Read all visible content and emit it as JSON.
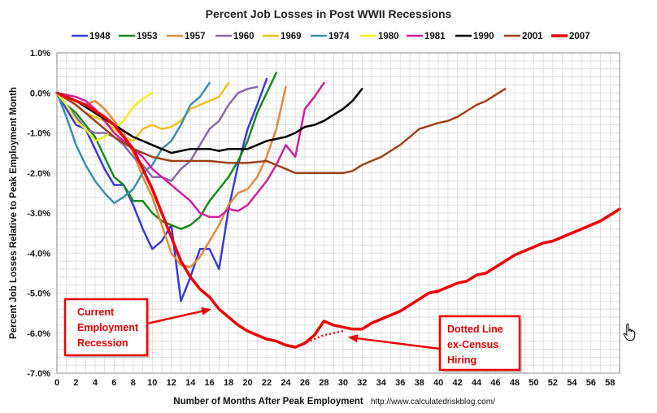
{
  "chart_data": {
    "type": "line",
    "title": "Percent Job Losses in Post WWII Recessions",
    "xlabel": "Number of Months After Peak Employment",
    "ylabel": "Percent Job Losses Relative to Peak Employment Month",
    "source": "http://www.calculatedriskblog.com/",
    "xlim": [
      0,
      59
    ],
    "ylim": [
      -7.0,
      1.0
    ],
    "x_ticks": [
      "0",
      "2",
      "4",
      "6",
      "8",
      "10",
      "12",
      "14",
      "16",
      "18",
      "20",
      "22",
      "24",
      "26",
      "28",
      "30",
      "32",
      "34",
      "36",
      "38",
      "40",
      "42",
      "44",
      "46",
      "48",
      "50",
      "52",
      "54",
      "56",
      "58"
    ],
    "y_ticks": [
      "1.0%",
      "0.0%",
      "-1.0%",
      "-2.0%",
      "-3.0%",
      "-4.0%",
      "-5.0%",
      "-6.0%",
      "-7.0%"
    ],
    "grid": true,
    "legend_position": "top",
    "series": [
      {
        "name": "1948",
        "color": "#3a3ae0",
        "width": 2.5,
        "x": [
          0,
          1,
          2,
          3,
          4,
          5,
          6,
          7,
          8,
          9,
          10,
          11,
          12,
          13,
          14,
          15,
          16,
          17,
          18,
          19,
          20,
          21,
          22
        ],
        "y": [
          0,
          -0.4,
          -0.8,
          -0.9,
          -1.4,
          -1.9,
          -2.3,
          -2.3,
          -2.8,
          -3.4,
          -3.9,
          -3.7,
          -3.3,
          -5.2,
          -4.6,
          -3.9,
          -3.9,
          -4.4,
          -2.9,
          -1.8,
          -0.9,
          -0.3,
          0.35
        ]
      },
      {
        "name": "1953",
        "color": "#1a8a1a",
        "width": 2.5,
        "x": [
          0,
          1,
          2,
          3,
          4,
          5,
          6,
          7,
          8,
          9,
          10,
          11,
          12,
          13,
          14,
          15,
          16,
          17,
          18,
          19,
          20,
          21,
          22,
          23
        ],
        "y": [
          0,
          -0.3,
          -0.5,
          -0.8,
          -1.1,
          -1.6,
          -2.1,
          -2.3,
          -2.7,
          -2.7,
          -3.0,
          -3.2,
          -3.3,
          -3.4,
          -3.3,
          -3.1,
          -2.7,
          -2.4,
          -2.1,
          -1.7,
          -1.2,
          -0.5,
          0.0,
          0.5
        ]
      },
      {
        "name": "1957",
        "color": "#e38a3c",
        "width": 2.5,
        "x": [
          0,
          1,
          2,
          3,
          4,
          5,
          6,
          7,
          8,
          9,
          10,
          11,
          12,
          13,
          14,
          15,
          16,
          17,
          18,
          19,
          20,
          21,
          22,
          23,
          24
        ],
        "y": [
          0,
          -0.1,
          -0.2,
          -0.3,
          -0.2,
          -0.4,
          -0.7,
          -1.0,
          -1.5,
          -2.1,
          -2.6,
          -3.3,
          -4.0,
          -4.3,
          -4.35,
          -4.1,
          -3.7,
          -3.3,
          -2.8,
          -2.5,
          -2.4,
          -2.1,
          -1.6,
          -0.9,
          0.15
        ]
      },
      {
        "name": "1960",
        "color": "#8a6aaa",
        "width": 2.5,
        "x": [
          0,
          1,
          2,
          3,
          4,
          5,
          6,
          7,
          8,
          9,
          10,
          11,
          12,
          13,
          14,
          15,
          16,
          17,
          18,
          19,
          20,
          21
        ],
        "y": [
          0,
          -0.3,
          -0.6,
          -0.9,
          -1.0,
          -1.0,
          -1.1,
          -1.3,
          -1.6,
          -1.8,
          -2.1,
          -2.1,
          -2.2,
          -1.9,
          -1.7,
          -1.3,
          -0.9,
          -0.7,
          -0.3,
          0.0,
          0.1,
          0.15
        ]
      },
      {
        "name": "1969",
        "color": "#f0c020",
        "width": 2.5,
        "x": [
          0,
          1,
          2,
          3,
          4,
          5,
          6,
          7,
          8,
          9,
          10,
          11,
          12,
          13,
          14,
          15,
          16,
          17,
          18
        ],
        "y": [
          0,
          -0.15,
          -0.3,
          -0.5,
          -0.6,
          -0.7,
          -0.9,
          -1.1,
          -1.2,
          -0.9,
          -0.8,
          -0.9,
          -0.85,
          -0.7,
          -0.4,
          -0.3,
          -0.2,
          -0.1,
          0.25
        ]
      },
      {
        "name": "1974",
        "color": "#3a90b0",
        "width": 2.5,
        "x": [
          0,
          1,
          2,
          3,
          4,
          5,
          6,
          7,
          8,
          9,
          10,
          11,
          12,
          13,
          14,
          15,
          16
        ],
        "y": [
          0,
          -0.6,
          -1.3,
          -1.8,
          -2.2,
          -2.5,
          -2.75,
          -2.6,
          -2.4,
          -2.0,
          -1.8,
          -1.4,
          -1.2,
          -0.8,
          -0.3,
          -0.1,
          0.25
        ]
      },
      {
        "name": "1980",
        "color": "#f0f020",
        "width": 2.5,
        "x": [
          0,
          1,
          2,
          3,
          4,
          5,
          6,
          7,
          8,
          9,
          10
        ],
        "y": [
          0,
          -0.3,
          -0.7,
          -0.9,
          -1.2,
          -1.1,
          -0.9,
          -0.7,
          -0.35,
          -0.15,
          0.0
        ]
      },
      {
        "name": "1981",
        "color": "#d020a0",
        "width": 2.5,
        "x": [
          0,
          1,
          2,
          3,
          4,
          5,
          6,
          7,
          8,
          9,
          10,
          11,
          12,
          13,
          14,
          15,
          16,
          17,
          18,
          19,
          20,
          21,
          22,
          23,
          24,
          25,
          26,
          27,
          28
        ],
        "y": [
          0,
          -0.05,
          -0.1,
          -0.2,
          -0.4,
          -0.7,
          -1.0,
          -1.2,
          -1.4,
          -1.6,
          -1.9,
          -2.1,
          -2.3,
          -2.5,
          -2.7,
          -3.0,
          -3.1,
          -3.1,
          -2.9,
          -2.95,
          -2.8,
          -2.5,
          -2.2,
          -1.8,
          -1.3,
          -1.6,
          -0.4,
          -0.1,
          0.25
        ]
      },
      {
        "name": "1990",
        "color": "#000000",
        "width": 2.5,
        "x": [
          0,
          2,
          4,
          6,
          8,
          10,
          11,
          12,
          13,
          14,
          15,
          16,
          17,
          18,
          19,
          20,
          21,
          22,
          23,
          24,
          25,
          26,
          27,
          28,
          29,
          30,
          31,
          32
        ],
        "y": [
          0,
          -0.2,
          -0.5,
          -0.8,
          -1.1,
          -1.3,
          -1.4,
          -1.5,
          -1.45,
          -1.4,
          -1.4,
          -1.4,
          -1.45,
          -1.4,
          -1.4,
          -1.4,
          -1.3,
          -1.2,
          -1.15,
          -1.1,
          -1.0,
          -0.85,
          -0.8,
          -0.7,
          -0.55,
          -0.4,
          -0.2,
          0.1
        ]
      },
      {
        "name": "2001",
        "color": "#a0401a",
        "width": 2.5,
        "x": [
          0,
          2,
          4,
          6,
          8,
          10,
          12,
          14,
          16,
          18,
          20,
          22,
          24,
          25,
          26,
          28,
          30,
          31,
          32,
          34,
          36,
          38,
          40,
          41,
          42,
          44,
          45,
          46,
          47
        ],
        "y": [
          0,
          -0.3,
          -0.7,
          -1.1,
          -1.4,
          -1.6,
          -1.7,
          -1.7,
          -1.7,
          -1.75,
          -1.75,
          -1.7,
          -1.9,
          -2.0,
          -2.0,
          -2.0,
          -2.0,
          -1.95,
          -1.8,
          -1.6,
          -1.3,
          -0.9,
          -0.75,
          -0.7,
          -0.6,
          -0.3,
          -0.2,
          -0.05,
          0.1
        ]
      },
      {
        "name": "2007",
        "color": "#ee0000",
        "width": 3.5,
        "x": [
          0,
          1,
          2,
          3,
          4,
          5,
          6,
          7,
          8,
          9,
          10,
          11,
          12,
          13,
          14,
          15,
          16,
          17,
          18,
          19,
          20,
          21,
          22,
          23,
          24,
          25,
          26,
          27,
          28,
          29,
          30,
          31,
          32,
          33,
          34,
          35,
          36,
          37,
          38,
          39,
          40,
          41,
          42,
          43,
          44,
          45,
          46,
          47,
          48,
          49,
          50,
          51,
          52,
          53,
          54,
          55,
          56,
          57,
          58,
          59
        ],
        "y": [
          0,
          -0.1,
          -0.2,
          -0.3,
          -0.45,
          -0.6,
          -0.8,
          -1.1,
          -1.4,
          -1.9,
          -2.4,
          -3.0,
          -3.6,
          -4.2,
          -4.6,
          -4.9,
          -5.1,
          -5.4,
          -5.6,
          -5.8,
          -5.95,
          -6.05,
          -6.15,
          -6.2,
          -6.3,
          -6.35,
          -6.25,
          -6.05,
          -5.7,
          -5.8,
          -5.85,
          -5.9,
          -5.9,
          -5.75,
          -5.65,
          -5.55,
          -5.45,
          -5.3,
          -5.15,
          -5.0,
          -4.95,
          -4.85,
          -4.75,
          -4.7,
          -4.55,
          -4.5,
          -4.35,
          -4.2,
          -4.05,
          -3.95,
          -3.85,
          -3.75,
          -3.7,
          -3.6,
          -3.5,
          -3.4,
          -3.3,
          -3.2,
          -3.05,
          -2.9
        ]
      }
    ],
    "dotted_segment": {
      "color": "#ee0000",
      "x": [
        25,
        26,
        27,
        28,
        29,
        30
      ],
      "y": [
        -6.35,
        -6.25,
        -6.15,
        -6.05,
        -6.0,
        -5.95
      ]
    },
    "annotations": [
      {
        "id": "current",
        "lines": [
          "Current",
          "Employment",
          "Recession"
        ],
        "target_x": 16.2,
        "target_y": -5.4
      },
      {
        "id": "dotted",
        "lines": [
          "Dotted Line",
          "ex-Census",
          "Hiring"
        ],
        "target_x": 30.5,
        "target_y": -6.1
      }
    ]
  }
}
